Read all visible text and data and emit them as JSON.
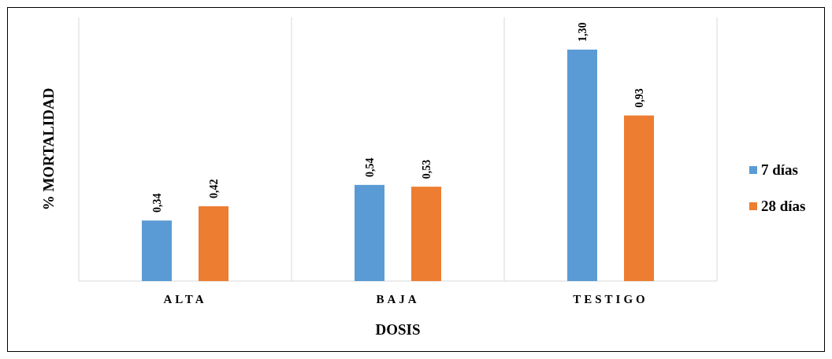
{
  "chart_data": {
    "type": "bar",
    "xlabel": "DOSIS",
    "ylabel": "% MORTALIDAD",
    "categories": [
      "ALTA",
      "BAJA",
      "TESTIGO"
    ],
    "series": [
      {
        "name": "7 días",
        "color": "#5b9bd5",
        "values": [
          0.34,
          0.54,
          1.3
        ],
        "value_labels": [
          "0,34",
          "0,54",
          "1,30"
        ]
      },
      {
        "name": "28 días",
        "color": "#ed7d31",
        "values": [
          0.42,
          0.53,
          0.93
        ],
        "value_labels": [
          "0,42",
          "0,53",
          "0,93"
        ]
      }
    ],
    "grid": "x",
    "legend": "right"
  }
}
